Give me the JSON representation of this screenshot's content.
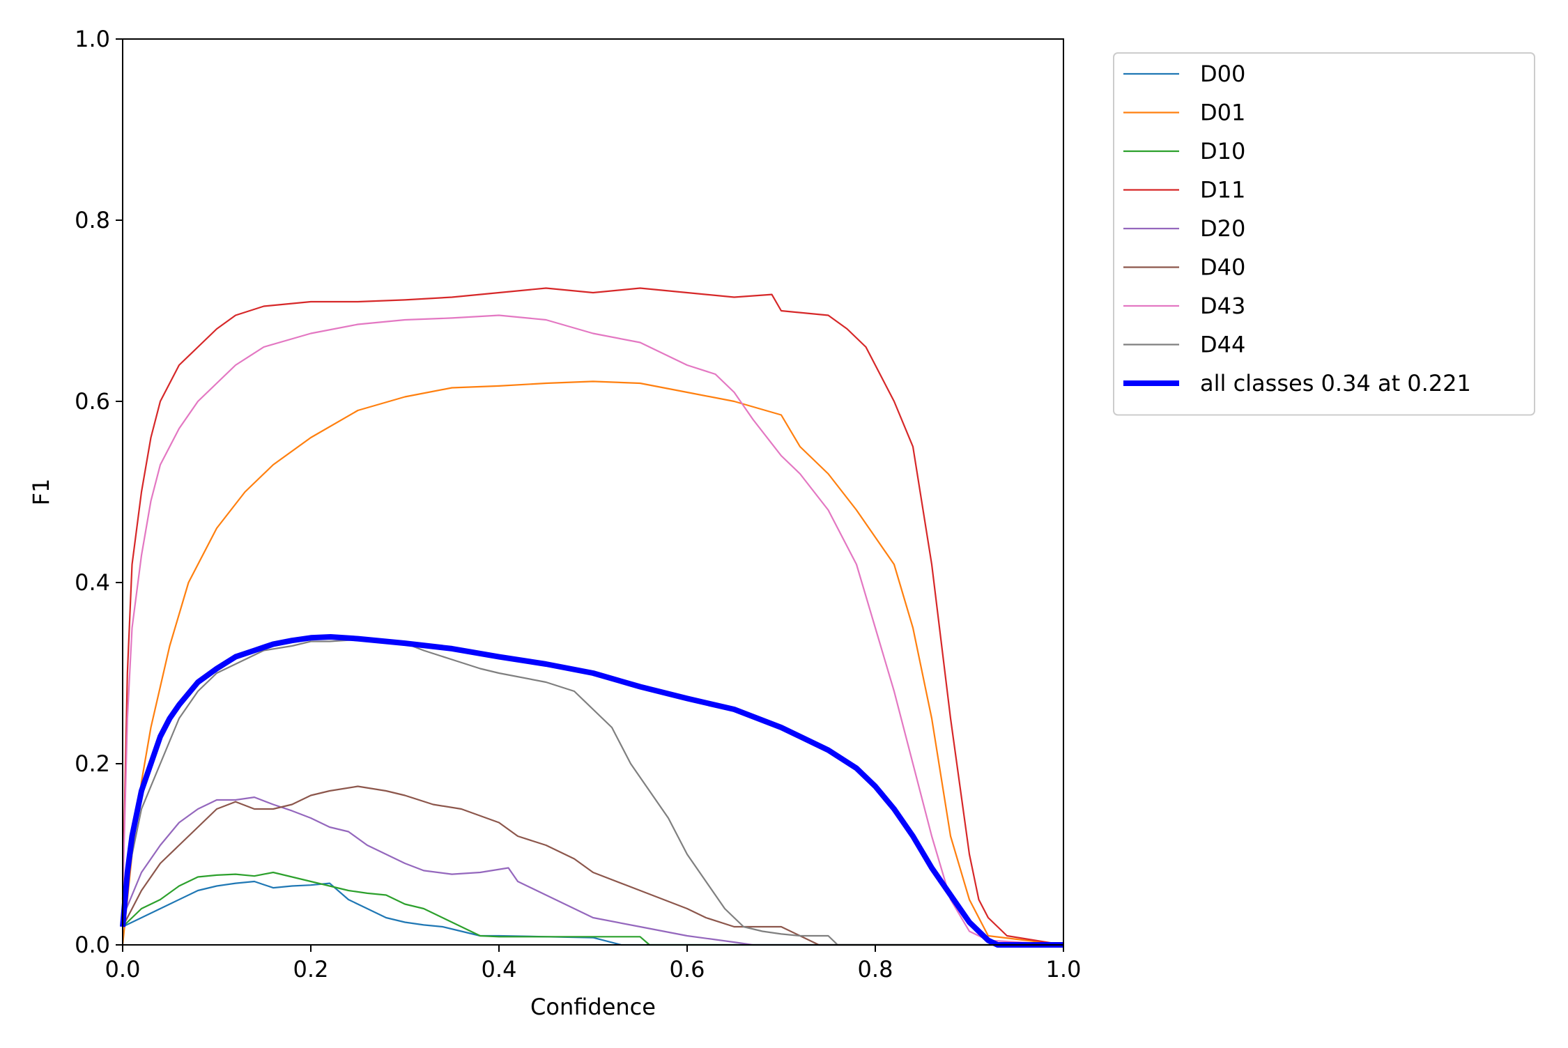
{
  "chart_data": {
    "type": "line",
    "title": "",
    "xlabel": "Confidence",
    "ylabel": "F1",
    "xlim": [
      0,
      1
    ],
    "ylim": [
      0,
      1
    ],
    "xticks": [
      "0.0",
      "0.2",
      "0.4",
      "0.6",
      "0.8",
      "1.0"
    ],
    "yticks": [
      "0.0",
      "0.2",
      "0.4",
      "0.6",
      "0.8",
      "1.0"
    ],
    "grid": false,
    "legend_position": "outside-upper-right",
    "series": [
      {
        "name": "D00",
        "color": "#1f77b4",
        "x": [
          0.0,
          0.02,
          0.05,
          0.08,
          0.1,
          0.12,
          0.14,
          0.16,
          0.18,
          0.2,
          0.22,
          0.24,
          0.26,
          0.28,
          0.3,
          0.32,
          0.34,
          0.36,
          0.38,
          0.4,
          0.45,
          0.5,
          0.53,
          0.55,
          0.6,
          1.0
        ],
        "y": [
          0.02,
          0.03,
          0.045,
          0.06,
          0.065,
          0.068,
          0.07,
          0.063,
          0.065,
          0.066,
          0.068,
          0.05,
          0.04,
          0.03,
          0.025,
          0.022,
          0.02,
          0.015,
          0.01,
          0.01,
          0.009,
          0.008,
          0.0,
          0.0,
          0.0,
          0.0
        ]
      },
      {
        "name": "D01",
        "color": "#ff7f0e",
        "x": [
          0.0,
          0.01,
          0.02,
          0.03,
          0.05,
          0.07,
          0.1,
          0.13,
          0.16,
          0.2,
          0.25,
          0.3,
          0.35,
          0.4,
          0.45,
          0.5,
          0.55,
          0.6,
          0.65,
          0.7,
          0.72,
          0.75,
          0.78,
          0.8,
          0.82,
          0.84,
          0.86,
          0.88,
          0.9,
          0.92,
          1.0
        ],
        "y": [
          0.0,
          0.1,
          0.18,
          0.24,
          0.33,
          0.4,
          0.46,
          0.5,
          0.53,
          0.56,
          0.59,
          0.605,
          0.615,
          0.617,
          0.62,
          0.622,
          0.62,
          0.61,
          0.6,
          0.585,
          0.55,
          0.52,
          0.48,
          0.45,
          0.42,
          0.35,
          0.25,
          0.12,
          0.05,
          0.01,
          0.0
        ]
      },
      {
        "name": "D10",
        "color": "#2ca02c",
        "x": [
          0.0,
          0.02,
          0.04,
          0.06,
          0.08,
          0.1,
          0.12,
          0.14,
          0.16,
          0.18,
          0.2,
          0.22,
          0.24,
          0.26,
          0.28,
          0.3,
          0.32,
          0.34,
          0.36,
          0.38,
          0.4,
          0.5,
          0.55,
          0.56,
          0.6,
          1.0
        ],
        "y": [
          0.02,
          0.04,
          0.05,
          0.065,
          0.075,
          0.077,
          0.078,
          0.076,
          0.08,
          0.075,
          0.07,
          0.065,
          0.06,
          0.057,
          0.055,
          0.045,
          0.04,
          0.03,
          0.02,
          0.01,
          0.009,
          0.009,
          0.009,
          0.0,
          0.0,
          0.0
        ]
      },
      {
        "name": "D11",
        "color": "#d62728",
        "x": [
          0.0,
          0.005,
          0.01,
          0.02,
          0.03,
          0.04,
          0.06,
          0.08,
          0.1,
          0.12,
          0.15,
          0.2,
          0.25,
          0.3,
          0.35,
          0.4,
          0.45,
          0.5,
          0.55,
          0.6,
          0.65,
          0.69,
          0.7,
          0.75,
          0.77,
          0.79,
          0.8,
          0.82,
          0.84,
          0.86,
          0.88,
          0.9,
          0.91,
          0.92,
          0.93,
          0.94,
          1.0
        ],
        "y": [
          0.05,
          0.3,
          0.42,
          0.5,
          0.56,
          0.6,
          0.64,
          0.66,
          0.68,
          0.695,
          0.705,
          0.71,
          0.71,
          0.712,
          0.715,
          0.72,
          0.725,
          0.72,
          0.725,
          0.72,
          0.715,
          0.718,
          0.7,
          0.695,
          0.68,
          0.66,
          0.64,
          0.6,
          0.55,
          0.42,
          0.25,
          0.1,
          0.05,
          0.03,
          0.02,
          0.01,
          0.0
        ]
      },
      {
        "name": "D20",
        "color": "#9467bd",
        "x": [
          0.0,
          0.02,
          0.04,
          0.06,
          0.08,
          0.1,
          0.12,
          0.14,
          0.16,
          0.18,
          0.2,
          0.22,
          0.24,
          0.26,
          0.28,
          0.3,
          0.32,
          0.35,
          0.38,
          0.41,
          0.42,
          0.45,
          0.48,
          0.5,
          0.55,
          0.6,
          0.65,
          0.67,
          0.7,
          1.0
        ],
        "y": [
          0.03,
          0.08,
          0.11,
          0.135,
          0.15,
          0.16,
          0.16,
          0.163,
          0.155,
          0.148,
          0.14,
          0.13,
          0.125,
          0.11,
          0.1,
          0.09,
          0.082,
          0.078,
          0.08,
          0.085,
          0.07,
          0.055,
          0.04,
          0.03,
          0.02,
          0.01,
          0.003,
          0.0,
          0.0,
          0.0
        ]
      },
      {
        "name": "D40",
        "color": "#8c564b",
        "x": [
          0.0,
          0.02,
          0.04,
          0.06,
          0.08,
          0.1,
          0.12,
          0.14,
          0.16,
          0.18,
          0.2,
          0.22,
          0.25,
          0.28,
          0.3,
          0.33,
          0.36,
          0.4,
          0.42,
          0.45,
          0.48,
          0.5,
          0.55,
          0.6,
          0.62,
          0.65,
          0.7,
          0.72,
          0.74,
          1.0
        ],
        "y": [
          0.02,
          0.06,
          0.09,
          0.11,
          0.13,
          0.15,
          0.158,
          0.15,
          0.15,
          0.155,
          0.165,
          0.17,
          0.175,
          0.17,
          0.165,
          0.155,
          0.15,
          0.135,
          0.12,
          0.11,
          0.095,
          0.08,
          0.06,
          0.04,
          0.03,
          0.02,
          0.02,
          0.01,
          0.0,
          0.0
        ]
      },
      {
        "name": "D43",
        "color": "#e377c2",
        "x": [
          0.0,
          0.005,
          0.01,
          0.02,
          0.03,
          0.04,
          0.06,
          0.08,
          0.1,
          0.12,
          0.15,
          0.2,
          0.25,
          0.3,
          0.35,
          0.4,
          0.45,
          0.5,
          0.55,
          0.6,
          0.63,
          0.65,
          0.67,
          0.7,
          0.72,
          0.75,
          0.78,
          0.8,
          0.82,
          0.84,
          0.86,
          0.88,
          0.9,
          0.92,
          1.0
        ],
        "y": [
          0.05,
          0.25,
          0.35,
          0.43,
          0.49,
          0.53,
          0.57,
          0.6,
          0.62,
          0.64,
          0.66,
          0.675,
          0.685,
          0.69,
          0.692,
          0.695,
          0.69,
          0.675,
          0.665,
          0.64,
          0.63,
          0.61,
          0.58,
          0.54,
          0.52,
          0.48,
          0.42,
          0.35,
          0.28,
          0.2,
          0.12,
          0.05,
          0.015,
          0.005,
          0.0
        ]
      },
      {
        "name": "D44",
        "color": "#7f7f7f",
        "x": [
          0.0,
          0.01,
          0.02,
          0.04,
          0.06,
          0.08,
          0.1,
          0.12,
          0.15,
          0.18,
          0.2,
          0.22,
          0.25,
          0.28,
          0.3,
          0.32,
          0.35,
          0.38,
          0.4,
          0.45,
          0.48,
          0.5,
          0.52,
          0.54,
          0.56,
          0.58,
          0.6,
          0.62,
          0.64,
          0.66,
          0.68,
          0.7,
          0.72,
          0.75,
          0.76,
          1.0
        ],
        "y": [
          0.03,
          0.1,
          0.15,
          0.2,
          0.25,
          0.28,
          0.3,
          0.31,
          0.325,
          0.33,
          0.335,
          0.335,
          0.337,
          0.335,
          0.333,
          0.325,
          0.315,
          0.305,
          0.3,
          0.29,
          0.28,
          0.26,
          0.24,
          0.2,
          0.17,
          0.14,
          0.1,
          0.07,
          0.04,
          0.02,
          0.015,
          0.012,
          0.01,
          0.01,
          0.0,
          0.0
        ]
      },
      {
        "name": "all classes 0.34 at 0.221",
        "color": "#0000ff",
        "thick": true,
        "x": [
          0.0,
          0.005,
          0.01,
          0.02,
          0.03,
          0.04,
          0.05,
          0.06,
          0.08,
          0.1,
          0.12,
          0.14,
          0.16,
          0.18,
          0.2,
          0.221,
          0.25,
          0.3,
          0.35,
          0.4,
          0.45,
          0.5,
          0.55,
          0.6,
          0.65,
          0.7,
          0.75,
          0.78,
          0.8,
          0.82,
          0.84,
          0.86,
          0.88,
          0.9,
          0.92,
          0.93,
          1.0
        ],
        "y": [
          0.02,
          0.08,
          0.12,
          0.17,
          0.2,
          0.23,
          0.25,
          0.265,
          0.29,
          0.305,
          0.318,
          0.325,
          0.332,
          0.336,
          0.339,
          0.34,
          0.338,
          0.333,
          0.327,
          0.318,
          0.31,
          0.3,
          0.285,
          0.272,
          0.26,
          0.24,
          0.215,
          0.195,
          0.175,
          0.15,
          0.12,
          0.085,
          0.055,
          0.025,
          0.005,
          0.0,
          0.0
        ]
      }
    ]
  }
}
